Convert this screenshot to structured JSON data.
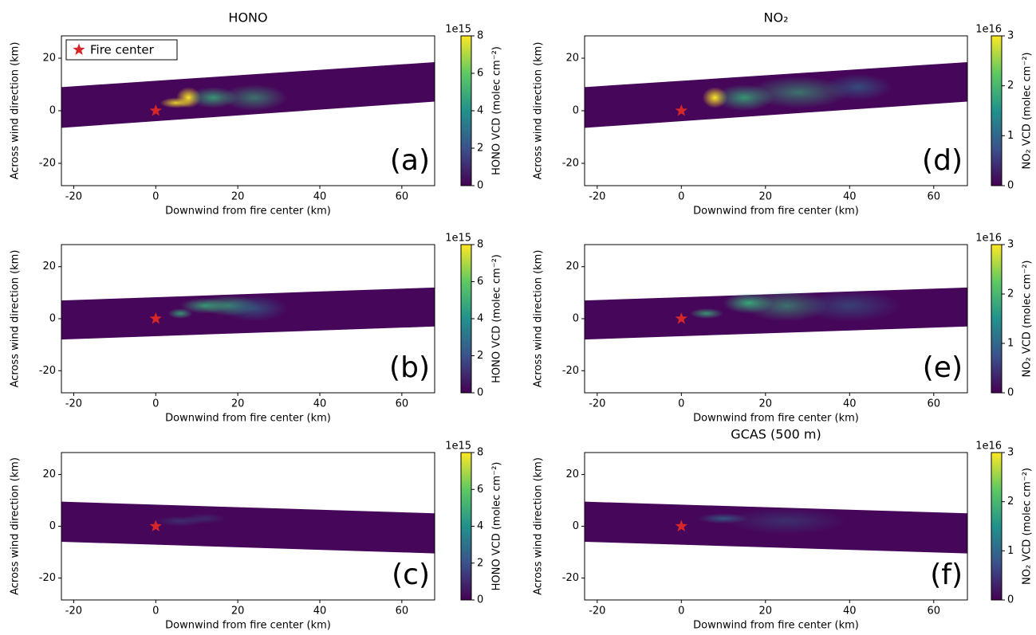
{
  "chart_data": [
    {
      "type": "heatmap",
      "title": "HONO",
      "panel_label": "(a)",
      "xlabel": "Downwind from fire center (km)",
      "ylabel": "Across wind direction (km)",
      "xlim": [
        -23,
        68
      ],
      "ylim": [
        -28.5,
        28.5
      ],
      "xticks": [
        -20,
        0,
        20,
        40,
        60
      ],
      "yticks": [
        -20,
        0,
        20
      ],
      "series": [
        {
          "name": "Fire center",
          "color": "#d62728",
          "x": [
            0
          ],
          "y": [
            0
          ]
        }
      ],
      "legend": "upper left",
      "colorbar": {
        "label": "HONO VCD (molec cm⁻²)",
        "offset": "1e15",
        "lim": [
          0,
          8
        ],
        "ticks": [
          0,
          2,
          4,
          6,
          8
        ]
      }
    },
    {
      "type": "heatmap",
      "panel_label": "(b)",
      "xlabel": "Downwind from fire center (km)",
      "ylabel": "Across wind direction (km)",
      "xlim": [
        -23,
        68
      ],
      "ylim": [
        -28.5,
        28.5
      ],
      "xticks": [
        -20,
        0,
        20,
        40,
        60
      ],
      "yticks": [
        -20,
        0,
        20
      ],
      "series": [
        {
          "color": "#d62728",
          "x": [
            0
          ],
          "y": [
            0
          ]
        }
      ],
      "colorbar": {
        "label": "HONO VCD (molec cm⁻²)",
        "offset": "1e15",
        "lim": [
          0,
          8
        ],
        "ticks": [
          0,
          2,
          4,
          6,
          8
        ]
      }
    },
    {
      "type": "heatmap",
      "panel_label": "(c)",
      "xlabel": "Downwind from fire center (km)",
      "ylabel": "Across wind direction (km)",
      "xlim": [
        -23,
        68
      ],
      "ylim": [
        -28.5,
        28.5
      ],
      "xticks": [
        -20,
        0,
        20,
        40,
        60
      ],
      "yticks": [
        -20,
        0,
        20
      ],
      "series": [
        {
          "color": "#d62728",
          "x": [
            0
          ],
          "y": [
            0
          ]
        }
      ],
      "colorbar": {
        "label": "HONO VCD (molec cm⁻²)",
        "offset": "1e15",
        "lim": [
          0,
          8
        ],
        "ticks": [
          0,
          2,
          4,
          6,
          8
        ]
      }
    },
    {
      "type": "heatmap",
      "title": "NO₂",
      "panel_label": "(d)",
      "xlabel": "Downwind from fire center (km)",
      "ylabel": "Across wind direction (km)",
      "xlim": [
        -23,
        68
      ],
      "ylim": [
        -28.5,
        28.5
      ],
      "xticks": [
        -20,
        0,
        20,
        40,
        60
      ],
      "yticks": [
        -20,
        0,
        20
      ],
      "series": [
        {
          "color": "#d62728",
          "x": [
            0
          ],
          "y": [
            0
          ]
        }
      ],
      "colorbar": {
        "label": "NO₂ VCD (molec cm⁻²)",
        "offset": "1e16",
        "lim": [
          0,
          3
        ],
        "ticks": [
          0,
          1,
          2,
          3
        ]
      }
    },
    {
      "type": "heatmap",
      "panel_label": "(e)",
      "xlabel": "Downwind from fire center (km)",
      "ylabel": "Across wind direction (km)",
      "xlim": [
        -23,
        68
      ],
      "ylim": [
        -28.5,
        28.5
      ],
      "xticks": [
        -20,
        0,
        20,
        40,
        60
      ],
      "yticks": [
        -20,
        0,
        20
      ],
      "series": [
        {
          "color": "#d62728",
          "x": [
            0
          ],
          "y": [
            0
          ]
        }
      ],
      "colorbar": {
        "label": "NO₂ VCD (molec cm⁻²)",
        "offset": "1e16",
        "lim": [
          0,
          3
        ],
        "ticks": [
          0,
          1,
          2,
          3
        ]
      }
    },
    {
      "type": "heatmap",
      "title": "GCAS (500 m)",
      "panel_label": "(f)",
      "xlabel": "Downwind from fire center (km)",
      "ylabel": "Across wind direction (km)",
      "xlim": [
        -23,
        68
      ],
      "ylim": [
        -28.5,
        28.5
      ],
      "xticks": [
        -20,
        0,
        20,
        40,
        60
      ],
      "yticks": [
        -20,
        0,
        20
      ],
      "series": [
        {
          "color": "#d62728",
          "x": [
            0
          ],
          "y": [
            0
          ]
        }
      ],
      "colorbar": {
        "label": "NO₂ VCD (molec cm⁻²)",
        "offset": "1e16",
        "lim": [
          0,
          3
        ],
        "ticks": [
          0,
          1,
          2,
          3
        ]
      }
    }
  ]
}
